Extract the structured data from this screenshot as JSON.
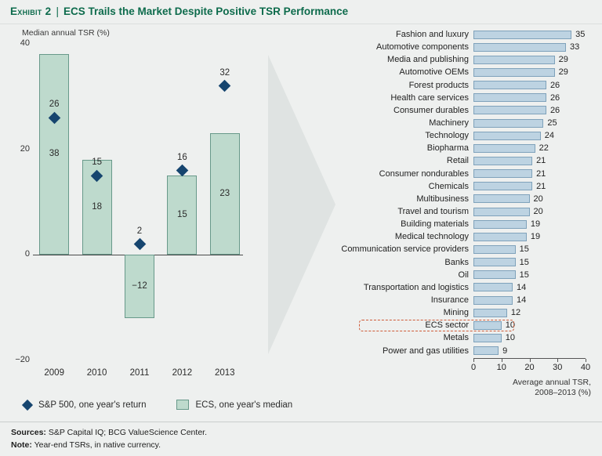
{
  "header": {
    "exhibit_label": "Exhibit 2",
    "separator": "|",
    "title": "ECS Trails the Market Despite Positive TSR Performance"
  },
  "chart_data": [
    {
      "type": "bar",
      "orientation": "vertical",
      "ylabel": "Median annual TSR (%)",
      "categories": [
        "2009",
        "2010",
        "2011",
        "2012",
        "2013"
      ],
      "series": [
        {
          "name": "ECS, one year's median",
          "mark": "bar",
          "values": [
            38,
            18,
            -12,
            15,
            23
          ]
        },
        {
          "name": "S&P 500, one year's return",
          "mark": "diamond",
          "values": [
            26,
            15,
            2,
            16,
            32
          ]
        }
      ],
      "ylim": [
        -20,
        40
      ],
      "yticks": [
        40,
        20,
        0,
        -20
      ],
      "grid": false,
      "legend_position": "bottom"
    },
    {
      "type": "bar",
      "orientation": "horizontal",
      "categories": [
        "Fashion and luxury",
        "Automotive components",
        "Media and publishing",
        "Automotive OEMs",
        "Forest products",
        "Health care services",
        "Consumer durables",
        "Machinery",
        "Technology",
        "Biopharma",
        "Retail",
        "Consumer nondurables",
        "Chemicals",
        "Multibusiness",
        "Travel and tourism",
        "Building materials",
        "Medical technology",
        "Communication service providers",
        "Banks",
        "Oil",
        "Transportation and logistics",
        "Insurance",
        "Mining",
        "ECS sector",
        "Metals",
        "Power and gas utilities"
      ],
      "values": [
        35,
        33,
        29,
        29,
        26,
        26,
        26,
        25,
        24,
        22,
        21,
        21,
        21,
        20,
        20,
        19,
        19,
        15,
        15,
        15,
        14,
        14,
        12,
        10,
        10,
        9
      ],
      "xlim": [
        0,
        40
      ],
      "xticks": [
        0,
        10,
        20,
        30,
        40
      ],
      "xlabel": "Average annual TSR, 2008–2013 (%)",
      "xlabel_lines": [
        "Average annual TSR,",
        "2008–2013 (%)"
      ],
      "highlight": "ECS sector",
      "grid": false
    }
  ],
  "colors": {
    "title_green": "#0d6b4c",
    "ecs_bar_fill": "#bedacd",
    "ecs_bar_border": "#68998a",
    "sector_bar_fill": "#bdd3e2",
    "sector_bar_border": "#7fa2bb",
    "sp500_diamond": "#16456f",
    "highlight_border": "#cf5b38",
    "background": "#eef0ef"
  },
  "footer": {
    "sources_label": "Sources:",
    "sources_text": "S&P Capital IQ; BCG ValueScience Center.",
    "note_label": "Note:",
    "note_text": "Year-end TSRs, in native currency."
  }
}
